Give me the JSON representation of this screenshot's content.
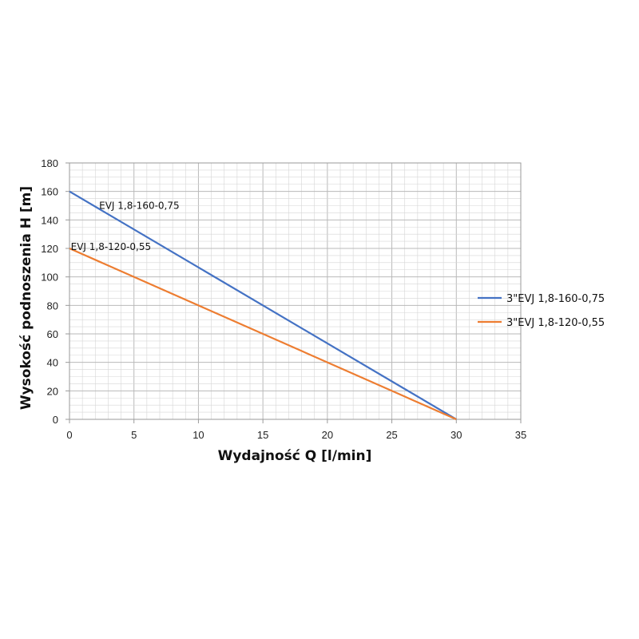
{
  "chart_data": {
    "type": "line",
    "xlabel": "Wydajność Q [l/min]",
    "ylabel": "Wysokość podnoszenia H [m]",
    "xlim": [
      0,
      35
    ],
    "ylim": [
      0,
      180
    ],
    "x_ticks": [
      0,
      5,
      10,
      15,
      20,
      25,
      30,
      35
    ],
    "y_ticks": [
      0,
      20,
      40,
      60,
      80,
      100,
      120,
      140,
      160,
      180
    ],
    "grid": true,
    "legend_position": "right",
    "series": [
      {
        "name": "3\"EVJ 1,8-160-0,75",
        "color": "#4472C4",
        "x": [
          0,
          30
        ],
        "y": [
          160,
          0
        ]
      },
      {
        "name": "3\"EVJ 1,8-120-0,55",
        "color": "#ED7D31",
        "x": [
          0,
          30
        ],
        "y": [
          120,
          0
        ]
      }
    ],
    "annotations": [
      {
        "text": "EVJ 1,8-160-0,75",
        "x": 2.3,
        "y": 150
      },
      {
        "text": "EVJ 1,8-120-0,55",
        "x": 0.1,
        "y": 121
      }
    ]
  }
}
